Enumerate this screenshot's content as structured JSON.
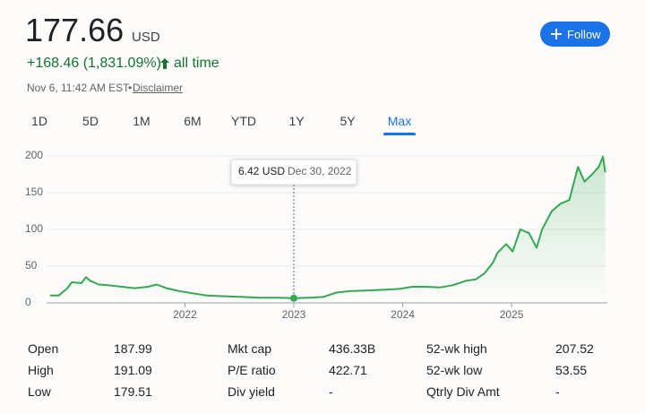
{
  "header": {
    "price": "177.66",
    "currency": "USD",
    "change": "+168.46 (1,831.09%)",
    "period": "all time",
    "timestamp": "Nov 6, 11:42 AM EST",
    "separator": "•",
    "disclaimer": "Disclaimer",
    "follow": "Follow"
  },
  "tabs": {
    "items": [
      "1D",
      "5D",
      "1M",
      "6M",
      "YTD",
      "1Y",
      "5Y",
      "Max"
    ],
    "selected": 7
  },
  "chart_data": {
    "type": "line",
    "x": [
      2020.76,
      2020.84,
      2020.92,
      2020.96,
      2021.05,
      2021.09,
      2021.13,
      2021.21,
      2021.29,
      2021.42,
      2021.54,
      2021.66,
      2021.74,
      2021.83,
      2021.95,
      2022.07,
      2022.2,
      2022.36,
      2022.53,
      2022.69,
      2022.86,
      2023.0,
      2023.14,
      2023.27,
      2023.39,
      2023.51,
      2023.68,
      2023.84,
      2023.97,
      2024.09,
      2024.21,
      2024.34,
      2024.46,
      2024.58,
      2024.67,
      2024.75,
      2024.83,
      2024.87,
      2024.95,
      2025.01,
      2025.08,
      2025.16,
      2025.23,
      2025.28,
      2025.37,
      2025.45,
      2025.53,
      2025.61,
      2025.67,
      2025.74,
      2025.8,
      2025.84,
      2025.86
    ],
    "series": [
      {
        "color": "#34a853",
        "values": [
          10,
          10,
          20,
          28,
          27,
          35,
          30,
          25,
          24,
          22,
          20,
          22,
          25,
          20,
          16,
          13,
          10,
          9,
          8,
          7,
          7,
          6.42,
          7,
          8,
          14,
          16,
          17,
          18,
          19,
          22,
          22,
          21,
          24,
          30,
          32,
          40,
          55,
          68,
          80,
          70,
          100,
          95,
          75,
          100,
          125,
          135,
          140,
          185,
          165,
          175,
          185,
          199,
          177.66
        ]
      }
    ],
    "xlim": [
      2020.63,
      2025.88
    ],
    "xticks": [
      2022,
      2023,
      2024,
      2025
    ],
    "ylim": [
      0,
      210
    ],
    "yticks": [
      0,
      50,
      100,
      150,
      200
    ],
    "grid": true,
    "tooltip": {
      "x": 2023.0,
      "value": 6.42,
      "label": "6.42 USD",
      "date": "Dec 30, 2022"
    }
  },
  "stats": [
    [
      [
        "Open",
        "187.99"
      ],
      [
        "High",
        "191.09"
      ],
      [
        "Low",
        "179.51"
      ]
    ],
    [
      [
        "Mkt cap",
        "436.33B"
      ],
      [
        "P/E ratio",
        "422.71"
      ],
      [
        "Div yield",
        "-"
      ]
    ],
    [
      [
        "52-wk high",
        "207.52"
      ],
      [
        "52-wk low",
        "53.55"
      ],
      [
        "Qtrly Div Amt",
        "-"
      ]
    ]
  ]
}
